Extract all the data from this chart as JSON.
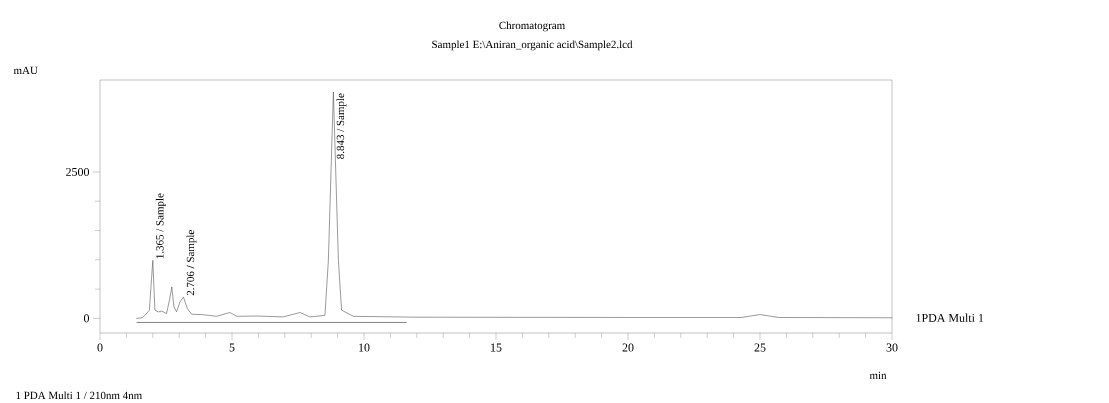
{
  "chart_data": {
    "type": "line",
    "title": "Chromatogram",
    "subtitle": "Sample1 E:\\Aniran_organic acid\\Sample2.lcd",
    "xlabel": "min",
    "ylabel": "mAU",
    "xlim": [
      0,
      30
    ],
    "xticks": [
      0,
      5,
      10,
      15,
      20,
      25,
      30
    ],
    "ylim": [
      -250,
      4070
    ],
    "yticks": [
      0,
      2500
    ],
    "grid": false,
    "line_style": "solid",
    "series": [
      {
        "name": "1PDA Multi 1",
        "color": "#555555",
        "x": [
          1.39,
          1.6,
          1.7,
          1.87,
          2.0,
          2.08,
          2.21,
          2.34,
          2.52,
          2.63,
          2.72,
          2.8,
          2.9,
          3.03,
          3.16,
          3.31,
          3.47,
          3.85,
          4.42,
          4.92,
          5.18,
          5.93,
          6.94,
          7.58,
          7.95,
          8.52,
          8.65,
          8.84,
          9.03,
          9.15,
          9.6,
          12,
          20,
          24.3,
          25.0,
          25.7,
          30
        ],
        "values": [
          0,
          10,
          50,
          140,
          990,
          140,
          110,
          125,
          80,
          310,
          535,
          195,
          110,
          280,
          365,
          165,
          70,
          65,
          35,
          100,
          35,
          40,
          25,
          100,
          25,
          50,
          990,
          3865,
          990,
          140,
          35,
          20,
          15,
          15,
          65,
          15,
          10
        ]
      },
      {
        "color": "#333333",
        "x": [
          1.4,
          11.6
        ],
        "values": [
          -70,
          -70
        ]
      }
    ],
    "annotations": [
      {
        "text": "1.365 / Sample",
        "x": 2.0,
        "y": 990
      },
      {
        "text": "2.706 / Sample",
        "x": 3.16,
        "y": 365
      },
      {
        "text": "8.843 / Sample",
        "x": 8.84,
        "y": 3865
      },
      "1   PDA Multi 1 / 210nm 4nm"
    ]
  }
}
